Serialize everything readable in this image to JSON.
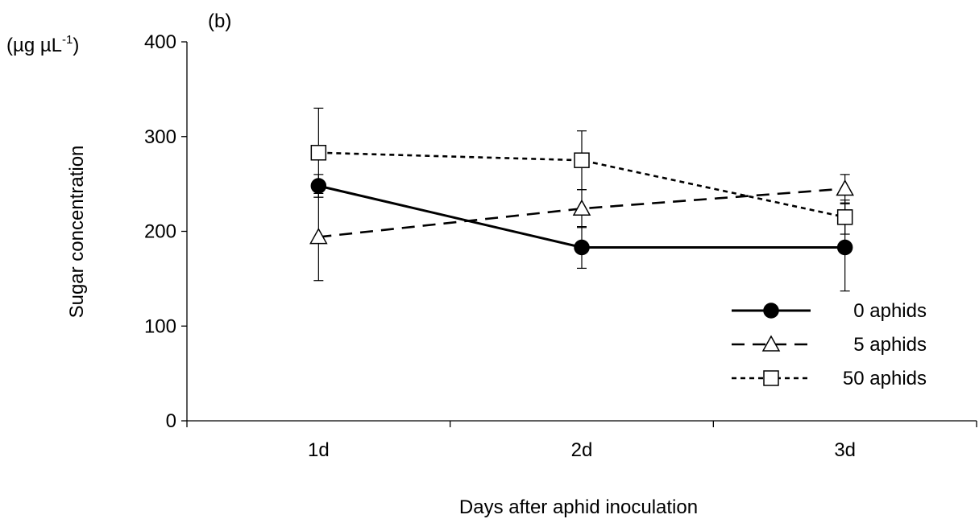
{
  "chart_data": {
    "type": "line",
    "panel_label": "(b)",
    "title": "",
    "xlabel": "Days after aphid inoculation",
    "ylabel": "Sugar concentration",
    "yunit_prefix": "(µg µL",
    "yunit_exp": "-1",
    "yunit_suffix": ")",
    "categories": [
      "1d",
      "2d",
      "3d"
    ],
    "ylim": [
      0,
      400
    ],
    "yticks": [
      0,
      100,
      200,
      300,
      400
    ],
    "grid": false,
    "legend_position": "lower-right",
    "series": [
      {
        "name": "0 aphids",
        "marker": "filled-circle",
        "line": "solid",
        "values": [
          248,
          183,
          183
        ],
        "error": [
          12,
          22,
          46
        ]
      },
      {
        "name": "5 aphids",
        "marker": "open-triangle",
        "line": "long-dash",
        "values": [
          194,
          224,
          245
        ],
        "error": [
          46,
          20,
          15
        ]
      },
      {
        "name": "50 aphids",
        "marker": "open-square",
        "line": "short-dash",
        "values": [
          283,
          275,
          215
        ],
        "error": [
          47,
          31,
          18
        ]
      }
    ]
  }
}
